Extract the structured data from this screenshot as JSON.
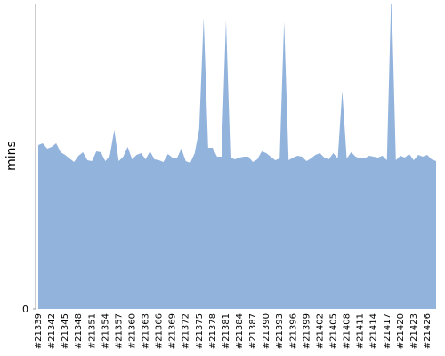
{
  "chart_data": {
    "type": "area",
    "y_label": "mins",
    "categories": [
      "#21339",
      null,
      null,
      "#21342",
      null,
      null,
      "#21345",
      null,
      null,
      "#21348",
      null,
      null,
      "#21351",
      null,
      null,
      "#21354",
      null,
      null,
      "#21357",
      null,
      null,
      "#21360",
      null,
      null,
      "#21363",
      null,
      null,
      "#21366",
      null,
      null,
      "#21369",
      null,
      null,
      "#21372",
      null,
      null,
      "#21375",
      null,
      null,
      "#21378",
      null,
      null,
      "#21381",
      null,
      null,
      "#21384",
      null,
      null,
      "#21387",
      null,
      null,
      "#21390",
      null,
      null,
      "#21393",
      null,
      null,
      "#21396",
      null,
      null,
      "#21399",
      null,
      null,
      "#21402",
      null,
      null,
      "#21405",
      null,
      null,
      "#21408",
      null,
      null,
      "#21411",
      null,
      null,
      "#21414",
      null,
      null,
      "#21417",
      null,
      null,
      "#21420",
      null,
      null,
      "#21423",
      null,
      null,
      "#21426",
      null,
      null
    ],
    "values": [
      18.4,
      18.6,
      18.0,
      18.2,
      18.6,
      17.6,
      17.3,
      16.9,
      16.5,
      17.2,
      17.6,
      16.7,
      16.6,
      17.7,
      17.6,
      16.6,
      17.2,
      20.1,
      16.6,
      17.1,
      18.2,
      16.8,
      17.3,
      17.5,
      16.8,
      17.7,
      16.8,
      16.7,
      16.5,
      17.4,
      17.0,
      16.9,
      18.0,
      16.6,
      16.4,
      17.5,
      20.2,
      32.7,
      18.1,
      18.1,
      17.1,
      17.1,
      32.4,
      17.0,
      16.8,
      17.0,
      17.1,
      17.1,
      16.5,
      16.8,
      17.7,
      17.5,
      17.1,
      16.7,
      16.9,
      32.3,
      16.7,
      17.0,
      17.2,
      17.1,
      16.6,
      16.9,
      17.3,
      17.5,
      17.0,
      16.8,
      17.5,
      16.9,
      24.5,
      16.9,
      17.6,
      17.1,
      16.9,
      16.9,
      17.2,
      17.1,
      17.0,
      17.2,
      16.7,
      36.0,
      16.7,
      17.2,
      17.0,
      17.4,
      16.7,
      17.3,
      17.1,
      17.3,
      16.8,
      16.6
    ],
    "color": "#92b3dc",
    "ylim": [
      0,
      34.2
    ],
    "yticks": [
      0
    ]
  }
}
